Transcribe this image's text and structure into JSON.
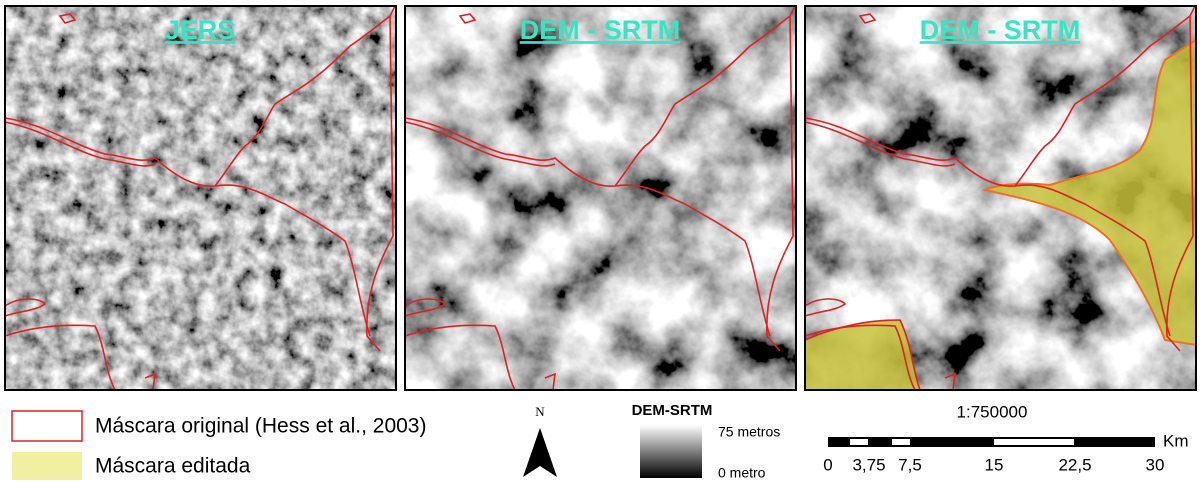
{
  "panels": [
    {
      "title": "JERS"
    },
    {
      "title": "DEM - SRTM"
    },
    {
      "title": "DEM - SRTM"
    }
  ],
  "legend": {
    "items": [
      {
        "label": "Máscara original (Hess et al., 2003)"
      },
      {
        "label": "Máscara editada"
      }
    ]
  },
  "north_arrow": {
    "label": "N"
  },
  "colorbar": {
    "title": "DEM-SRTM",
    "max_label": "75 metros",
    "min_label": "0 metro"
  },
  "scale_bar": {
    "ratio": "1:750000",
    "unit": "Km",
    "labels": [
      "0",
      "3,75",
      "7,5",
      "15",
      "22,5",
      "30"
    ]
  }
}
